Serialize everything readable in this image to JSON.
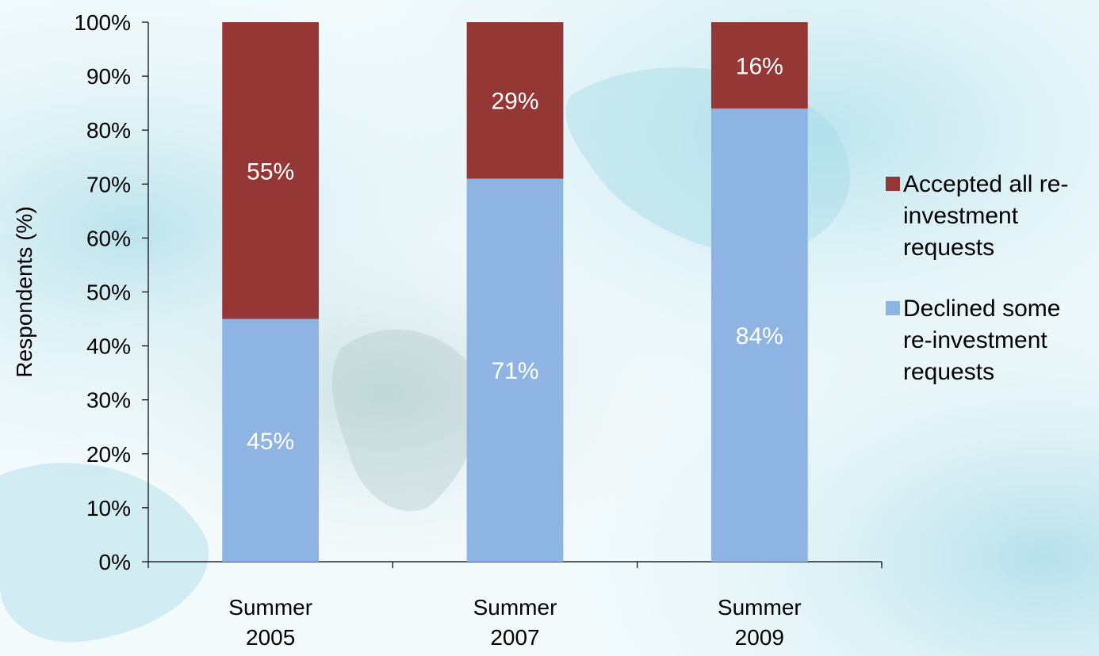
{
  "chart_data": {
    "type": "bar",
    "stacked": true,
    "ylabel": "Respondents (%)",
    "xlabel": "",
    "ylim": [
      0,
      100
    ],
    "yticks": [
      "0%",
      "10%",
      "20%",
      "30%",
      "40%",
      "50%",
      "60%",
      "70%",
      "80%",
      "90%",
      "100%"
    ],
    "categories": [
      [
        "Summer",
        "2005"
      ],
      [
        "Summer",
        "2007"
      ],
      [
        "Summer",
        "2009"
      ]
    ],
    "series": [
      {
        "name": "Declined some re-investment requests",
        "legend_lines": [
          "Declined some",
          "re-investment",
          "requests"
        ],
        "color": "#8EB4E3",
        "values": [
          45,
          71,
          84
        ],
        "labels": [
          "45%",
          "71%",
          "84%"
        ]
      },
      {
        "name": "Accepted all re-investment requests",
        "legend_lines": [
          "Accepted all re-",
          "investment",
          "requests"
        ],
        "color": "#953735",
        "values": [
          55,
          29,
          16
        ],
        "labels": [
          "55%",
          "29%",
          "16%"
        ]
      }
    ],
    "legend_placement": "right",
    "grid": false
  }
}
